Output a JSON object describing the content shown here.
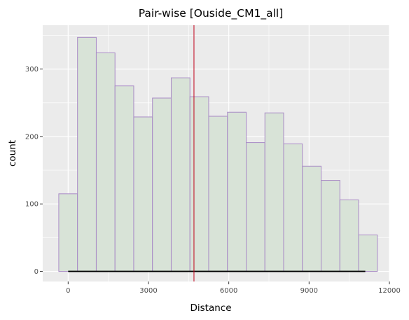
{
  "chart_data": {
    "type": "bar",
    "title": "Pair-wise [Ouside_CM1_all]",
    "xlabel": "Distance",
    "ylabel": "count",
    "bin_width": 700,
    "bin_start": -350,
    "counts": [
      115,
      347,
      324,
      275,
      229,
      257,
      287,
      259,
      230,
      236,
      191,
      235,
      189,
      156,
      135,
      106,
      54
    ],
    "xlim": [
      -950,
      12000
    ],
    "ylim": [
      -15,
      365
    ],
    "x_ticks": [
      0,
      3000,
      6000,
      9000,
      12000
    ],
    "x_tick_labels": [
      "0",
      "3000",
      "6000",
      "9000",
      "12000"
    ],
    "y_ticks": [
      0,
      100,
      200,
      300
    ],
    "y_tick_labels": [
      "0",
      "100",
      "200",
      "300"
    ],
    "vline_x": 4700,
    "range_line": [
      0,
      11100
    ],
    "grid": true,
    "colors": {
      "panel_bg": "#ebebeb",
      "grid": "#ffffff",
      "bar_fill": "#d8e3d7",
      "bar_stroke": "#a98bc6",
      "vline": "#c0001a",
      "range_line": "#000000"
    }
  }
}
